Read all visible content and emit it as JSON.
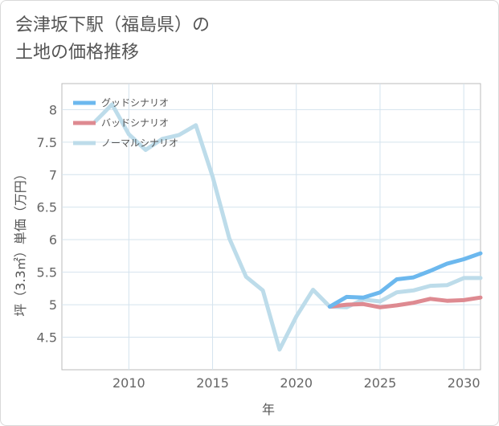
{
  "chart_data": {
    "type": "line",
    "title": [
      "会津坂下駅（福島県）の",
      "土地の価格推移"
    ],
    "xlabel": "年",
    "ylabel": "坪（3.3㎡）単価（万円）",
    "xlim": [
      2006,
      2031
    ],
    "ylim": [
      4,
      8.4
    ],
    "xticks": [
      2010,
      2015,
      2020,
      2025,
      2030
    ],
    "yticks": [
      4.5,
      5,
      5.5,
      6,
      6.5,
      7,
      7.5,
      8
    ],
    "grid": true,
    "legend_position": "top-left",
    "series": [
      {
        "name": "グッドシナリオ",
        "color": "#6cb8ee",
        "x": [
          2022,
          2023,
          2024,
          2025,
          2026,
          2027,
          2028,
          2029,
          2030,
          2031
        ],
        "y": [
          4.97,
          5.12,
          5.11,
          5.19,
          5.39,
          5.42,
          5.52,
          5.63,
          5.7,
          5.79
        ]
      },
      {
        "name": "バッドシナリオ",
        "color": "#de8a91",
        "x": [
          2022,
          2023,
          2024,
          2025,
          2026,
          2027,
          2028,
          2029,
          2030,
          2031
        ],
        "y": [
          4.97,
          5.0,
          5.01,
          4.96,
          4.99,
          5.03,
          5.09,
          5.06,
          5.07,
          5.11
        ]
      },
      {
        "name": "ノーマルシナリオ",
        "color": "#bddcea",
        "x": [
          2008,
          2009,
          2010,
          2011,
          2012,
          2013,
          2014,
          2015,
          2016,
          2017,
          2018,
          2019,
          2020,
          2021,
          2022,
          2023,
          2024,
          2025,
          2026,
          2027,
          2028,
          2029,
          2030,
          2031
        ],
        "y": [
          7.82,
          8.08,
          7.62,
          7.38,
          7.55,
          7.61,
          7.76,
          6.97,
          6.02,
          5.43,
          5.22,
          4.31,
          4.82,
          5.23,
          4.97,
          4.96,
          5.08,
          5.05,
          5.19,
          5.22,
          5.29,
          5.3,
          5.41,
          5.41
        ]
      }
    ]
  }
}
